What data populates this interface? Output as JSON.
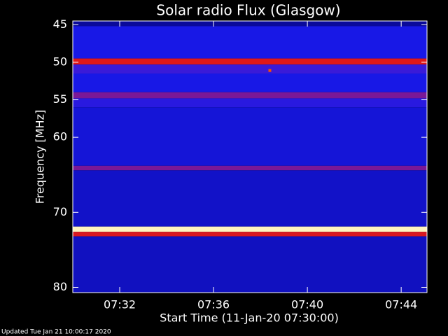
{
  "chart_data": {
    "type": "spectrogram",
    "title": "Solar radio Flux (Glasgow)",
    "ylabel": "Frequency [MHz]",
    "xlabel": "Start Time (11-Jan-20 07:30:00)",
    "footer": "Updated Tue Jan 21 10:00:17 2020",
    "xlim": [
      0,
      15.1
    ],
    "xticks": [
      {
        "value": 2,
        "label": "07:32"
      },
      {
        "value": 6,
        "label": "07:36"
      },
      {
        "value": 10,
        "label": "07:40"
      },
      {
        "value": 14,
        "label": "07:44"
      }
    ],
    "ylim": [
      44.5,
      80.7
    ],
    "y_inverted": true,
    "yticks": [
      45,
      50,
      55,
      60,
      70,
      80
    ],
    "bands": [
      44.5,
      45.2,
      49.5,
      50.3,
      51.5,
      54,
      54.8,
      56,
      63.8,
      64.4,
      71.9,
      72.6,
      73.2,
      80.7
    ],
    "levels": [
      0.35,
      0.45,
      0.76,
      0.55,
      0.45,
      0.62,
      0.5,
      0.43,
      0.62,
      0.41,
      0.98,
      0.75,
      0.4
    ],
    "spots": [
      {
        "x": 8.4,
        "y": 51.1,
        "level": 0.82
      }
    ],
    "colorscale": [
      [
        0,
        "#000000"
      ],
      [
        0.35,
        "#0a0a9a"
      ],
      [
        0.45,
        "#1818e6"
      ],
      [
        0.55,
        "#3a1ad8"
      ],
      [
        0.62,
        "#7a1896"
      ],
      [
        0.76,
        "#e01818"
      ],
      [
        0.85,
        "#ff6a00"
      ],
      [
        0.92,
        "#ffd800"
      ],
      [
        1,
        "#ffffff"
      ]
    ]
  }
}
